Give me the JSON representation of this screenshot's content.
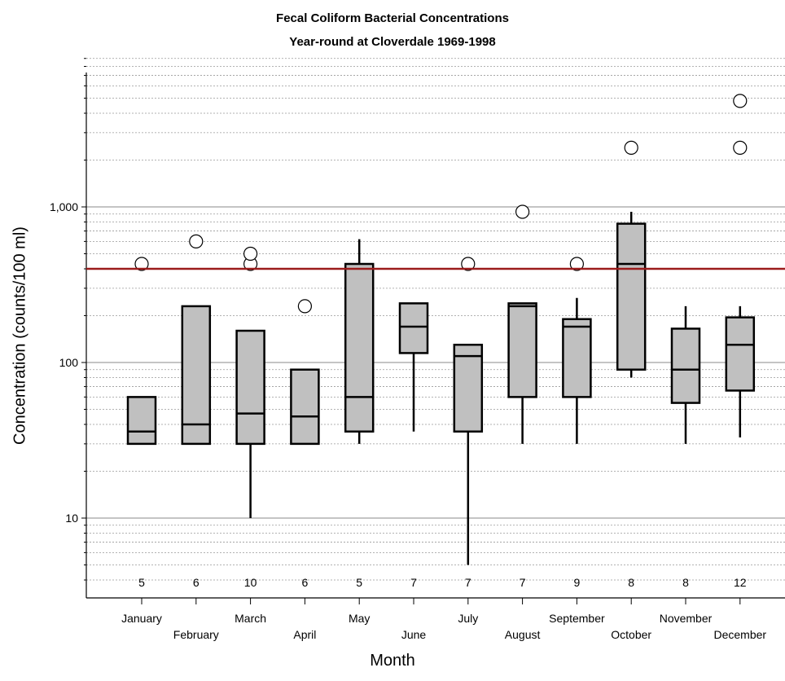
{
  "chart_data": {
    "type": "boxplot",
    "title": "Fecal Coliform Bacterial Concentrations",
    "subtitle": "Year-round at Cloverdale 1969-1998",
    "xlabel": "Month",
    "ylabel": "Concentration (counts/100 ml)",
    "y_scale": "log",
    "ylim": [
      4,
      9000
    ],
    "y_tick_labels": [
      "10",
      "100",
      "1,000"
    ],
    "y_tick_values": [
      10,
      100,
      1000
    ],
    "grid": "horizontal, dotted minor lines",
    "reference_line": {
      "value": 400,
      "color": "#9b1b1b"
    },
    "box_color": "#c0c0c0",
    "categories": [
      "January",
      "February",
      "March",
      "April",
      "May",
      "June",
      "July",
      "August",
      "September",
      "October",
      "November",
      "December"
    ],
    "counts": [
      "5",
      "6",
      "10",
      "6",
      "5",
      "7",
      "7",
      "7",
      "9",
      "8",
      "8",
      "12"
    ],
    "boxes": [
      {
        "low": 30,
        "q1": 30,
        "median": 36,
        "q3": 60,
        "high": 60,
        "outliers": [
          430
        ]
      },
      {
        "low": 30,
        "q1": 30,
        "median": 40,
        "q3": 230,
        "high": 230,
        "outliers": [
          600
        ]
      },
      {
        "low": 10,
        "q1": 30,
        "median": 47,
        "q3": 160,
        "high": 160,
        "outliers": [
          430,
          500
        ]
      },
      {
        "low": 30,
        "q1": 30,
        "median": 45,
        "q3": 90,
        "high": 90,
        "outliers": [
          230
        ]
      },
      {
        "low": 30,
        "q1": 36,
        "median": 60,
        "q3": 430,
        "high": 620,
        "outliers": []
      },
      {
        "low": 36,
        "q1": 115,
        "median": 170,
        "q3": 240,
        "high": 240,
        "outliers": []
      },
      {
        "low": 5,
        "q1": 36,
        "median": 110,
        "q3": 130,
        "high": 130,
        "outliers": [
          430
        ]
      },
      {
        "low": 30,
        "q1": 60,
        "median": 230,
        "q3": 240,
        "high": 240,
        "outliers": [
          930
        ]
      },
      {
        "low": 30,
        "q1": 60,
        "median": 170,
        "q3": 190,
        "high": 260,
        "outliers": [
          430
        ]
      },
      {
        "low": 80,
        "q1": 90,
        "median": 430,
        "q3": 780,
        "high": 930,
        "outliers": [
          2400
        ]
      },
      {
        "low": 30,
        "q1": 55,
        "median": 90,
        "q3": 165,
        "high": 230,
        "outliers": []
      },
      {
        "low": 33,
        "q1": 66,
        "median": 130,
        "q3": 195,
        "high": 230,
        "outliers": [
          2400,
          4800
        ]
      }
    ]
  }
}
